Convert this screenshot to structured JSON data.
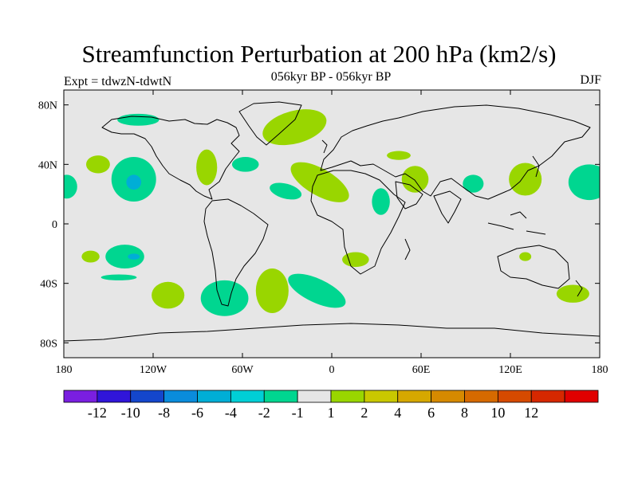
{
  "title": "Streamfunction Perturbation at 200 hPa (km2/s)",
  "subtitle": "056kyr BP - 056kyr BP",
  "left_label": "Expt = tdwzN-tdwtN",
  "right_label": "DJF",
  "map": {
    "lon_range": [
      -180,
      180
    ],
    "lat_range": [
      -90,
      90
    ],
    "ocean_color": "#e6e6e6",
    "x_ticks": [
      {
        "lon": -180,
        "label": "180"
      },
      {
        "lon": -120,
        "label": "120W"
      },
      {
        "lon": -60,
        "label": "60W"
      },
      {
        "lon": 0,
        "label": "0"
      },
      {
        "lon": 60,
        "label": "60E"
      },
      {
        "lon": 120,
        "label": "120E"
      },
      {
        "lon": 180,
        "label": "180"
      }
    ],
    "y_ticks": [
      {
        "lat": 80,
        "label": "80N"
      },
      {
        "lat": 40,
        "label": "40N"
      },
      {
        "lat": 0,
        "label": "0"
      },
      {
        "lat": -40,
        "label": "40S"
      },
      {
        "lat": -80,
        "label": "80S"
      }
    ],
    "anomalies": [
      {
        "name": "green-nw-atlantic",
        "lon": -25,
        "lat": 65,
        "rx": 22,
        "ry": 11,
        "rot": -15,
        "level": 1
      },
      {
        "name": "green-east-atlantic",
        "lon": -8,
        "lat": 28,
        "rx": 22,
        "ry": 9,
        "rot": 30,
        "level": 1
      },
      {
        "name": "green-north-america-east",
        "lon": -84,
        "lat": 38,
        "rx": 7,
        "ry": 12,
        "rot": 0,
        "level": 1
      },
      {
        "name": "green-pacific-north",
        "lon": -157,
        "lat": 40,
        "rx": 8,
        "ry": 6,
        "rot": 0,
        "level": 1
      },
      {
        "name": "green-central-asia",
        "lon": 56,
        "lat": 30,
        "rx": 9,
        "ry": 9,
        "rot": 0,
        "level": 1
      },
      {
        "name": "green-east-asia",
        "lon": 130,
        "lat": 30,
        "rx": 11,
        "ry": 11,
        "rot": 0,
        "level": 1
      },
      {
        "name": "green-south-africa",
        "lon": 16,
        "lat": -24,
        "rx": 9,
        "ry": 5,
        "rot": 0,
        "level": 1
      },
      {
        "name": "green-south-atlantic",
        "lon": -40,
        "lat": -45,
        "rx": 11,
        "ry": 15,
        "rot": 0,
        "level": 1
      },
      {
        "name": "green-south-pacific",
        "lon": -110,
        "lat": -48,
        "rx": 11,
        "ry": 9,
        "rot": 0,
        "level": 1
      },
      {
        "name": "green-sw-pacific",
        "lon": 130,
        "lat": -22,
        "rx": 4,
        "ry": 3,
        "rot": 0,
        "level": 1
      },
      {
        "name": "green-new-zealand",
        "lon": 162,
        "lat": -47,
        "rx": 11,
        "ry": 6,
        "rot": 0,
        "level": 1
      },
      {
        "name": "green-west-russia",
        "lon": 45,
        "lat": 46,
        "rx": 8,
        "ry": 3,
        "rot": 0,
        "level": 1
      },
      {
        "name": "teal-alaska-pacific",
        "lon": -133,
        "lat": 30,
        "rx": 15,
        "ry": 15,
        "rot": 0,
        "level": -1
      },
      {
        "name": "teal-canada",
        "lon": -130,
        "lat": 70,
        "rx": 14,
        "ry": 4,
        "rot": 0,
        "level": -1
      },
      {
        "name": "teal-north-atlantic",
        "lon": -58,
        "lat": 40,
        "rx": 9,
        "ry": 5,
        "rot": 0,
        "level": -1
      },
      {
        "name": "teal-mid-atlantic",
        "lon": -31,
        "lat": 22,
        "rx": 11,
        "ry": 5,
        "rot": 15,
        "level": -1
      },
      {
        "name": "teal-africa-east",
        "lon": 33,
        "lat": 15,
        "rx": 6,
        "ry": 9,
        "rot": 0,
        "level": -1
      },
      {
        "name": "teal-india",
        "lon": 95,
        "lat": 27,
        "rx": 7,
        "ry": 6,
        "rot": 0,
        "level": -1
      },
      {
        "name": "teal-west-pacific-north",
        "lon": 173,
        "lat": 28,
        "rx": 14,
        "ry": 12,
        "rot": 0,
        "level": -1
      },
      {
        "name": "teal-east-pacific-north",
        "lon": -178,
        "lat": 25,
        "rx": 7,
        "ry": 8,
        "rot": 0,
        "level": -1
      },
      {
        "name": "teal-south-pacific-center",
        "lon": -139,
        "lat": -22,
        "rx": 13,
        "ry": 8,
        "rot": 0,
        "level": -1
      },
      {
        "name": "teal-south-pacific-tail",
        "lon": -143,
        "lat": -36,
        "rx": 12,
        "ry": 2,
        "rot": 0,
        "level": -1
      },
      {
        "name": "teal-south-america",
        "lon": -72,
        "lat": -50,
        "rx": 16,
        "ry": 12,
        "rot": 0,
        "level": -1
      },
      {
        "name": "teal-south-atlantic-arc",
        "lon": -10,
        "lat": -45,
        "rx": 21,
        "ry": 8,
        "rot": 25,
        "level": -1
      },
      {
        "name": "teal-south-central",
        "lon": -162,
        "lat": -22,
        "rx": 6,
        "ry": 4,
        "rot": 0,
        "level": 1
      },
      {
        "name": "blue-pacific-north-core",
        "lon": -133,
        "lat": 28,
        "rx": 5,
        "ry": 5,
        "rot": 0,
        "level": -2
      },
      {
        "name": "blue-south-pacific-core",
        "lon": -133,
        "lat": -22,
        "rx": 4,
        "ry": 2,
        "rot": 0,
        "level": -2
      }
    ]
  },
  "colorbar": {
    "colors": [
      "#7a1fe0",
      "#3015d9",
      "#1446cc",
      "#0a8cdc",
      "#00aed6",
      "#00cfd6",
      "#00d690",
      "#e6e6e6",
      "#99d600",
      "#c9c800",
      "#d6a800",
      "#d68a00",
      "#d66a00",
      "#d64a00",
      "#d62800",
      "#e00000"
    ],
    "labels": [
      "-12",
      "-10",
      "-8",
      "-6",
      "-4",
      "-2",
      "-1",
      "1",
      "2",
      "4",
      "6",
      "8",
      "10",
      "12"
    ]
  }
}
